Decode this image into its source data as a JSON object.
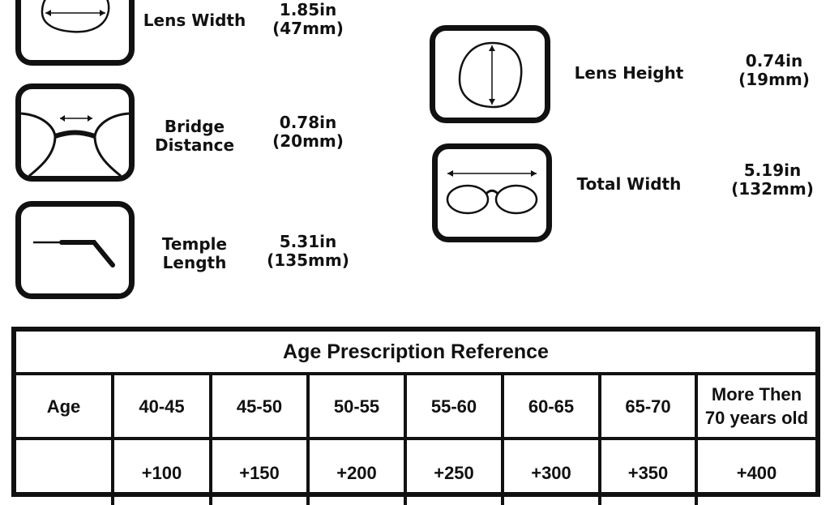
{
  "measurements": [
    {
      "label": [
        "Lens Width"
      ],
      "value": [
        "1.85in",
        "(47mm)"
      ],
      "icon": "lens-width-icon"
    },
    {
      "label": [
        "Bridge",
        "Distance"
      ],
      "value": [
        "0.78in",
        "(20mm)"
      ],
      "icon": "bridge-distance-icon"
    },
    {
      "label": [
        "Temple",
        "Length"
      ],
      "value": [
        "5.31in",
        "(135mm)"
      ],
      "icon": "temple-length-icon"
    },
    {
      "label": [
        "Lens Height"
      ],
      "value": [
        "0.74in",
        "(19mm)"
      ],
      "icon": "lens-height-icon"
    },
    {
      "label": [
        "Total Width"
      ],
      "value": [
        "5.19in",
        "(132mm)"
      ],
      "icon": "total-width-icon"
    }
  ],
  "table": {
    "title": "Age Prescription Reference",
    "headers": [
      "Age",
      "40-45",
      "45-50",
      "50-55",
      "55-60",
      "60-65",
      "65-70",
      "More Then 70 years old"
    ],
    "values": [
      "",
      "+100",
      "+150",
      "+200",
      "+250",
      "+300",
      "+350",
      "+400"
    ]
  }
}
